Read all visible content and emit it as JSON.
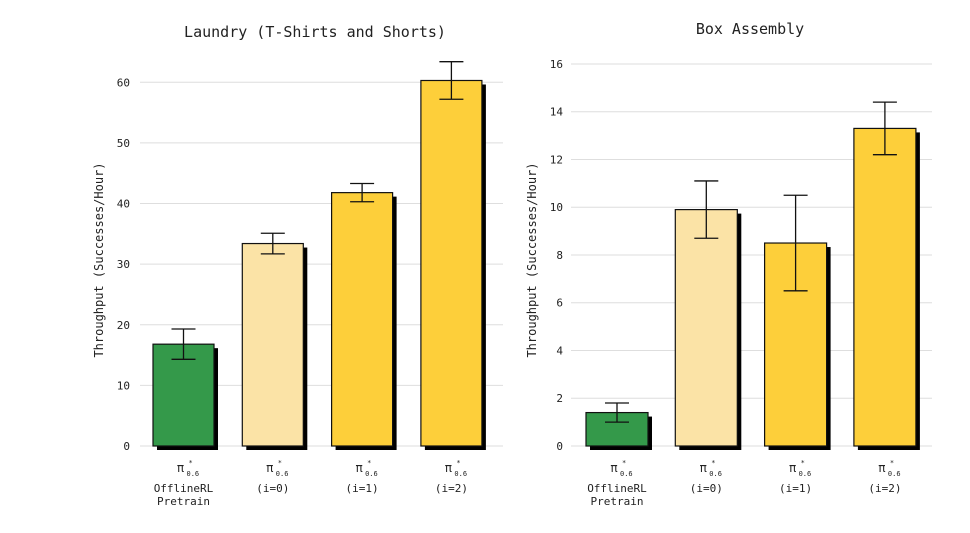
{
  "chart_data": [
    {
      "type": "bar",
      "title": "Laundry (T-Shirts and Shorts)",
      "ylabel": "Throughput (Successes/Hour)",
      "xlabel": "",
      "ylim": [
        0,
        65
      ],
      "yticks": [
        0,
        10,
        20,
        30,
        40,
        50,
        60
      ],
      "grid": true,
      "categories": [
        {
          "symbol": "π",
          "superscript": "*",
          "subscript": "0.6",
          "lines": [
            "OfflineRL",
            "Pretrain"
          ]
        },
        {
          "symbol": "π",
          "superscript": "*",
          "subscript": "0.6",
          "lines": [
            "(i=0)"
          ]
        },
        {
          "symbol": "π",
          "superscript": "*",
          "subscript": "0.6",
          "lines": [
            "(i=1)"
          ]
        },
        {
          "symbol": "π",
          "superscript": "*",
          "subscript": "0.6",
          "lines": [
            "(i=2)"
          ]
        }
      ],
      "values": [
        16.8,
        33.4,
        41.8,
        60.3
      ],
      "errors": [
        2.5,
        1.7,
        1.5,
        3.1
      ],
      "colors": [
        "#34994a",
        "#fbe3a6",
        "#fdcf3a",
        "#fdcf3a"
      ]
    },
    {
      "type": "bar",
      "title": "Box Assembly",
      "ylabel": "Throughput (Successes/Hour)",
      "xlabel": "",
      "ylim": [
        0,
        16.5
      ],
      "yticks": [
        0,
        2,
        4,
        6,
        8,
        10,
        12,
        14,
        16
      ],
      "grid": true,
      "categories": [
        {
          "symbol": "π",
          "superscript": "*",
          "subscript": "0.6",
          "lines": [
            "OfflineRL",
            "Pretrain"
          ]
        },
        {
          "symbol": "π",
          "superscript": "*",
          "subscript": "0.6",
          "lines": [
            "(i=0)"
          ]
        },
        {
          "symbol": "π",
          "superscript": "*",
          "subscript": "0.6",
          "lines": [
            "(i=1)"
          ]
        },
        {
          "symbol": "π",
          "superscript": "*",
          "subscript": "0.6",
          "lines": [
            "(i=2)"
          ]
        }
      ],
      "values": [
        1.4,
        9.9,
        8.5,
        13.3
      ],
      "errors": [
        0.4,
        1.2,
        2.0,
        1.1
      ],
      "colors": [
        "#34994a",
        "#fbe3a6",
        "#fdcf3a",
        "#fdcf3a"
      ]
    }
  ]
}
